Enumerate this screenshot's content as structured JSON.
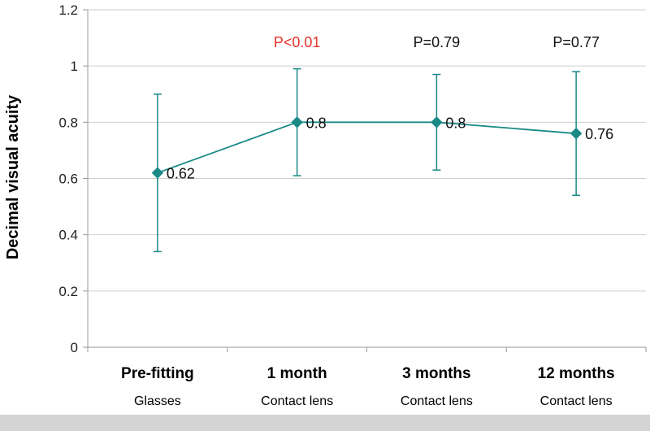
{
  "chart_data": {
    "type": "line",
    "title": "",
    "ylabel": "Decimal visual acuity",
    "xlabel": "",
    "ylim": [
      0,
      1.2
    ],
    "yticks": [
      "0",
      "0.2",
      "0.4",
      "0.6",
      "0.8",
      "1",
      "1.2"
    ],
    "grid": true,
    "categories": [
      "Pre-fitting",
      "1 month",
      "3 months",
      "12 months"
    ],
    "subcategories": [
      "Glasses",
      "Contact lens",
      "Contact lens",
      "Contact lens"
    ],
    "series": [
      {
        "values": [
          0.62,
          0.8,
          0.8,
          0.76
        ],
        "error_low": [
          0.34,
          0.61,
          0.63,
          0.54
        ],
        "error_high": [
          0.9,
          0.99,
          0.97,
          0.98
        ],
        "data_labels": [
          "0.62",
          "0.8",
          "0.8",
          "0.76"
        ],
        "color": "#1a8a87"
      }
    ],
    "annotations": [
      "",
      "P<0.01",
      "P=0.79",
      "P=0.77"
    ],
    "annotation_colors": [
      "#000000",
      "#e8322a",
      "#111111",
      "#111111"
    ]
  }
}
